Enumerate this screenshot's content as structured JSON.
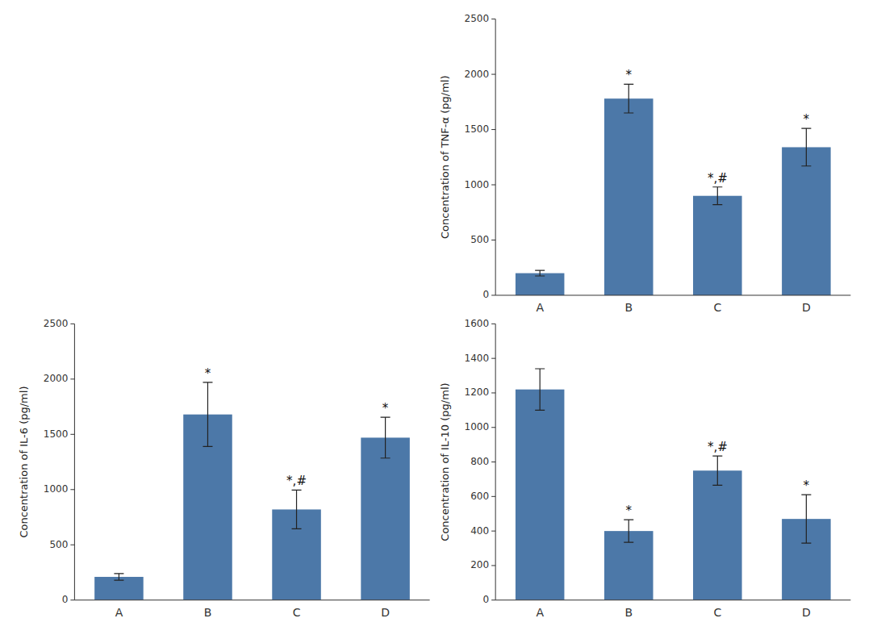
{
  "chart_data": [
    {
      "type": "bar",
      "ylabel": "Concentration of TNF-α (pg/ml)",
      "categories": [
        "A",
        "B",
        "C",
        "D"
      ],
      "values": [
        200,
        1780,
        900,
        1340
      ],
      "errors": [
        25,
        130,
        80,
        170
      ],
      "annotations": [
        null,
        "*",
        "*,#",
        "*"
      ],
      "color": "#4c78a8",
      "ylim": [
        0,
        2500
      ],
      "yticks": [
        0,
        500,
        1000,
        1500,
        2000,
        2500
      ],
      "grid": false
    },
    {
      "type": "bar",
      "ylabel": "Concentration of IL-6 (pg/ml)",
      "categories": [
        "A",
        "B",
        "C",
        "D"
      ],
      "values": [
        210,
        1680,
        820,
        1470
      ],
      "errors": [
        30,
        290,
        175,
        185
      ],
      "annotations": [
        null,
        "*",
        "*,#",
        "*"
      ],
      "color": "#4c78a8",
      "ylim": [
        0,
        2500
      ],
      "yticks": [
        0,
        500,
        1000,
        1500,
        2000,
        2500
      ],
      "grid": false
    },
    {
      "type": "bar",
      "ylabel": "Concentration of IL-10 (pg/ml)",
      "categories": [
        "A",
        "B",
        "C",
        "D"
      ],
      "values": [
        1220,
        400,
        750,
        470
      ],
      "errors": [
        120,
        65,
        85,
        140
      ],
      "annotations": [
        null,
        "*",
        "*,#",
        "*"
      ],
      "color": "#4c78a8",
      "ylim": [
        0,
        1600
      ],
      "yticks": [
        0,
        200,
        400,
        600,
        800,
        1000,
        1200,
        1400,
        1600
      ],
      "grid": false
    }
  ]
}
